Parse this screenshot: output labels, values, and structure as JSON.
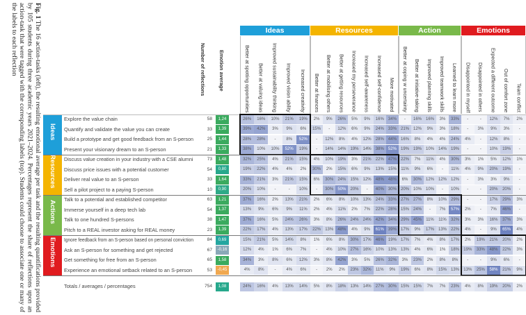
{
  "caption": {
    "label": "Fig. 1",
    "text": " The 16 action-tasks (left), the resulting emotional average per task and the resulting quantifications provided by 105 students during three academic years 2021–2024. Percentages represent the share of reflections upon an action-task that were tagged with the corresponding labels (top). Students could choose to associate one or many of the labels to each reflection"
  },
  "table_headers": {
    "count": "Number of reflections",
    "emotion": "Emotion average"
  },
  "colors": {
    "Ideas": "#1e9fd9",
    "Resources": "#f4b400",
    "Action": "#79b94a",
    "Emotions": "#e01b1f"
  },
  "column_groups": [
    {
      "name": "Ideas",
      "columns": [
        "Better at spotting opportunities",
        "Better at valuing ideas",
        "Improved sustainability thinking",
        "Improved vision ability",
        "Increased creativity"
      ]
    },
    {
      "name": "Resources",
      "columns": [
        "Better at finances",
        "Better at mobilising others",
        "Better at getting resources",
        "Increased my perseverance",
        "Increased self-awareness",
        "Increased self-confidence",
        "More motivated"
      ]
    },
    {
      "name": "Action",
      "columns": [
        "Better at coping w uncertainty",
        "Better at initiative-taking",
        "Improved planning skills",
        "Improved teamwork skills",
        "Learned to learn more"
      ]
    },
    {
      "name": "Emotions",
      "columns": [
        "Disappointed in myself",
        "Disappointed in others",
        "Expected a different outcome",
        "Out of comfort zone",
        "Team conflict"
      ]
    }
  ],
  "row_groups": [
    {
      "name": "Ideas",
      "rows": [
        {
          "task": "Explore the value chain",
          "count": "58",
          "emotion": "1,24",
          "emotion_color": "#3aaa5e",
          "values": [
            "26%",
            "16%",
            "10%",
            "21%",
            "19%",
            "2%",
            "9%",
            "26%",
            "5%",
            "9%",
            "16%",
            "34%",
            "-",
            "16%",
            "16%",
            "3%",
            "33%",
            "-",
            "-",
            "12%",
            "7%",
            "2%"
          ]
        },
        {
          "task": "Quantify and validate the value you can create",
          "count": "33",
          "emotion": "1,39",
          "emotion_color": "#3aaa5e",
          "values": [
            "39%",
            "42%",
            "3%",
            "9%",
            "6%",
            "15%",
            "-",
            "12%",
            "6%",
            "9%",
            "24%",
            "33%",
            "21%",
            "12%",
            "9%",
            "3%",
            "18%",
            "-",
            "3%",
            "9%",
            "3%",
            "-"
          ]
        },
        {
          "task": "Build a prototype and get good feedback from an S-person",
          "count": "25",
          "emotion": "1,44",
          "emotion_color": "#3aaa5e",
          "values": [
            "28%",
            "28%",
            "-",
            "8%",
            "52%",
            "-",
            "12%",
            "8%",
            "4%",
            "12%",
            "28%",
            "44%",
            "16%",
            "8%",
            "4%",
            "4%",
            "24%",
            "4%",
            "-",
            "12%",
            "8%",
            "-"
          ]
        },
        {
          "task": "Present your visionary dream to an S-person",
          "count": "21",
          "emotion": "1,33",
          "emotion_color": "#3aaa5e",
          "values": [
            "38%",
            "10%",
            "10%",
            "52%",
            "19%",
            "-",
            "14%",
            "14%",
            "19%",
            "14%",
            "38%",
            "52%",
            "19%",
            "19%",
            "10%",
            "14%",
            "19%",
            "-",
            "-",
            "10%",
            "19%",
            "-"
          ]
        }
      ]
    },
    {
      "name": "Resources",
      "rows": [
        {
          "task": "Discuss value creation in your industry with a CSE alumni",
          "count": "73",
          "emotion": "1,48",
          "emotion_color": "#3aaa5e",
          "values": [
            "32%",
            "25%",
            "4%",
            "21%",
            "15%",
            "4%",
            "10%",
            "19%",
            "3%",
            "21%",
            "22%",
            "47%",
            "22%",
            "7%",
            "11%",
            "4%",
            "30%",
            "3%",
            "1%",
            "5%",
            "12%",
            "1%"
          ]
        },
        {
          "task": "Discuss price issues with a potential customer",
          "count": "54",
          "emotion": "0,80",
          "emotion_color": "#27a88c",
          "values": [
            "19%",
            "22%",
            "4%",
            "4%",
            "2%",
            "30%",
            "2%",
            "15%",
            "6%",
            "9%",
            "13%",
            "15%",
            "11%",
            "9%",
            "6%",
            "-",
            "11%",
            "4%",
            "9%",
            "20%",
            "19%",
            "-"
          ]
        },
        {
          "task": "Deliver real value to an S-person",
          "count": "33",
          "emotion": "1,64",
          "emotion_color": "#3aaa5e",
          "values": [
            "33%",
            "21%",
            "3%",
            "21%",
            "15%",
            "6%",
            "30%",
            "24%",
            "15%",
            "12%",
            "48%",
            "48%",
            "6%",
            "30%",
            "12%",
            "12%",
            "12%",
            "-",
            "3%",
            "3%",
            "9%",
            "-"
          ]
        },
        {
          "task": "Sell a pilot project to a paying S-person",
          "count": "10",
          "emotion": "0,90",
          "emotion_color": "#2ea987",
          "values": [
            "20%",
            "10%",
            "-",
            "-",
            "10%",
            "-",
            "30%",
            "50%",
            "20%",
            "-",
            "40%",
            "30%",
            "20%",
            "10%",
            "10%",
            "-",
            "10%",
            "-",
            "-",
            "20%",
            "20%",
            "-"
          ]
        }
      ]
    },
    {
      "name": "Actions",
      "rows": [
        {
          "task": "Talk to a potential and established competitor",
          "count": "63",
          "emotion": "1,21",
          "emotion_color": "#3aaa5e",
          "values": [
            "37%",
            "16%",
            "2%",
            "13%",
            "21%",
            "2%",
            "6%",
            "8%",
            "10%",
            "13%",
            "24%",
            "33%",
            "27%",
            "27%",
            "8%",
            "10%",
            "29%",
            "-",
            "-",
            "17%",
            "29%",
            "3%"
          ]
        },
        {
          "task": "Immerse yourself in a deep tech lab",
          "count": "54",
          "emotion": "1,37",
          "emotion_color": "#3aaa5e",
          "values": [
            "13%",
            "9%",
            "6%",
            "9%",
            "11%",
            "2%",
            "4%",
            "11%",
            "2%",
            "7%",
            "22%",
            "28%",
            "15%",
            "24%",
            "-",
            "7%",
            "57%",
            "2%",
            "-",
            "7%",
            "46%",
            "-"
          ]
        },
        {
          "task": "Talk to one hundred S-persons",
          "count": "38",
          "emotion": "1,47",
          "emotion_color": "#3aaa5e",
          "values": [
            "37%",
            "16%",
            "5%",
            "24%",
            "26%",
            "3%",
            "8%",
            "26%",
            "24%",
            "24%",
            "42%",
            "34%",
            "29%",
            "45%",
            "11%",
            "11%",
            "32%",
            "3%",
            "3%",
            "16%",
            "37%",
            "3%"
          ]
        },
        {
          "task": "Pitch to a REAL investor asking for REAL money",
          "count": "23",
          "emotion": "1,39",
          "emotion_color": "#3aaa5e",
          "values": [
            "22%",
            "17%",
            "4%",
            "13%",
            "17%",
            "22%",
            "13%",
            "48%",
            "4%",
            "9%",
            "61%",
            "39%",
            "17%",
            "9%",
            "17%",
            "13%",
            "22%",
            "4%",
            "-",
            "9%",
            "65%",
            "4%"
          ]
        }
      ]
    },
    {
      "name": "Emotions",
      "rows": [
        {
          "task": "Ignore feedback from an S-person based on personal conviction",
          "count": "84",
          "emotion": "0,69",
          "emotion_color": "#23a6a0",
          "values": [
            "15%",
            "21%",
            "5%",
            "14%",
            "8%",
            "1%",
            "6%",
            "8%",
            "30%",
            "17%",
            "46%",
            "19%",
            "17%",
            "7%",
            "4%",
            "8%",
            "17%",
            "2%",
            "19%",
            "21%",
            "20%",
            "2%"
          ]
        },
        {
          "task": "Ask an S-person for something and get rejected",
          "count": "67",
          "emotion": "-0,16",
          "emotion_color": "#8aa9b8",
          "values": [
            "12%",
            "4%",
            "1%",
            "6%",
            "7%",
            "-",
            "4%",
            "10%",
            "27%",
            "16%",
            "10%",
            "13%",
            "13%",
            "4%",
            "6%",
            "1%",
            "18%",
            "19%",
            "33%",
            "48%",
            "22%",
            "3%"
          ]
        },
        {
          "task": "Get something for free from an S-person",
          "count": "65",
          "emotion": "1,58",
          "emotion_color": "#3aaa5e",
          "values": [
            "34%",
            "3%",
            "8%",
            "6%",
            "12%",
            "3%",
            "8%",
            "42%",
            "3%",
            "5%",
            "26%",
            "32%",
            "3%",
            "23%",
            "2%",
            "8%",
            "8%",
            "-",
            "-",
            "9%",
            "6%",
            "-"
          ]
        },
        {
          "task": "Experience an emotional setback  related to an S-person",
          "count": "53",
          "emotion": "-0,45",
          "emotion_color": "#f0a850",
          "values": [
            "4%",
            "8%",
            "-",
            "4%",
            "6%",
            "-",
            "2%",
            "2%",
            "23%",
            "32%",
            "11%",
            "9%",
            "19%",
            "6%",
            "8%",
            "15%",
            "13%",
            "13%",
            "25%",
            "58%",
            "21%",
            "9%"
          ]
        }
      ]
    }
  ],
  "totals": {
    "task": "Totals / averages / percentages",
    "count": "754",
    "emotion": "1,08",
    "emotion_color": "#27a88c",
    "values": [
      "24%",
      "16%",
      "4%",
      "13%",
      "14%",
      "5%",
      "8%",
      "18%",
      "13%",
      "14%",
      "27%",
      "30%",
      "15%",
      "15%",
      "7%",
      "7%",
      "23%",
      "4%",
      "8%",
      "19%",
      "20%",
      "2%"
    ]
  }
}
